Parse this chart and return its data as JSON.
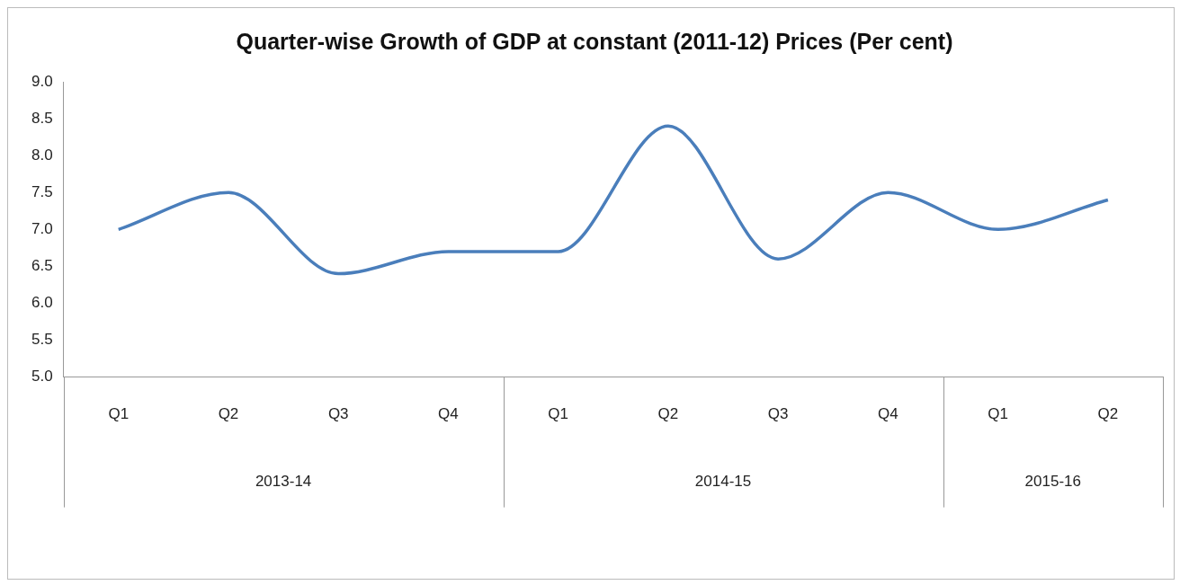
{
  "chart_data": {
    "type": "line",
    "title": "Quarter-wise Growth of GDP at constant (2011-12) Prices (Per cent)",
    "categories": [
      "Q1",
      "Q2",
      "Q3",
      "Q4",
      "Q1",
      "Q2",
      "Q3",
      "Q4",
      "Q1",
      "Q2"
    ],
    "series": [
      {
        "color": "#4a7ebb",
        "values": [
          7.0,
          7.5,
          6.4,
          6.7,
          6.7,
          8.4,
          6.6,
          7.5,
          7.0,
          7.4
        ]
      }
    ],
    "annotations": [
      "2013-14",
      "2014-15",
      "2015-16"
    ],
    "ylim": [
      5,
      9
    ],
    "yticks": [
      {
        "value": 5,
        "label": "5.0"
      },
      {
        "value": 5.5,
        "label": "5.5"
      },
      {
        "value": 6,
        "label": "6.0"
      },
      {
        "value": 6.5,
        "label": "6.5"
      },
      {
        "value": 7,
        "label": "7.0"
      },
      {
        "value": 7.5,
        "label": "7.5"
      },
      {
        "value": 8,
        "label": "8.0"
      },
      {
        "value": 8.5,
        "label": "8.5"
      },
      {
        "value": 9,
        "label": "9.0"
      }
    ],
    "grid": false,
    "legend": false,
    "marker": "none",
    "line_style": "solid"
  }
}
